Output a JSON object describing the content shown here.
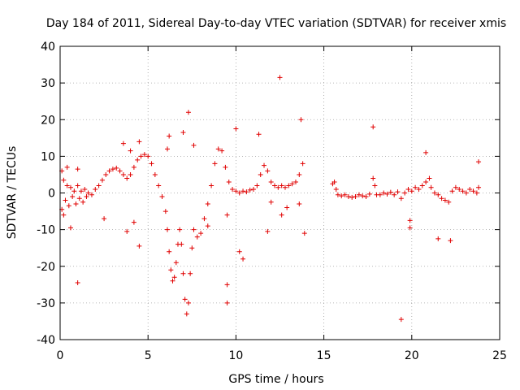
{
  "chart_data": {
    "type": "scatter",
    "title": "Day 184 of 2011, Sidereal Day-to-day VTEC variation (SDTVAR) for receiver xmis",
    "xlabel": "GPS time / hours",
    "ylabel": "SDTVAR / TECUs",
    "xlim": [
      0,
      25
    ],
    "ylim": [
      -40,
      40
    ],
    "xticks": [
      0,
      5,
      10,
      15,
      20,
      25
    ],
    "yticks": [
      -40,
      -30,
      -20,
      -10,
      0,
      10,
      20,
      30,
      40
    ],
    "xtick_labels": [
      "0",
      "5",
      "10",
      "15",
      "20",
      "25"
    ],
    "ytick_labels": [
      "-40",
      "-30",
      "-20",
      "-10",
      "0",
      "10",
      "20",
      "30",
      "40"
    ],
    "grid": true,
    "marker": "+",
    "color": "#e00000",
    "series": [
      {
        "name": "SDTVAR",
        "points": [
          [
            0.1,
            -4.5
          ],
          [
            0.1,
            6
          ],
          [
            0.2,
            3.5
          ],
          [
            0.2,
            -6
          ],
          [
            0.3,
            -2
          ],
          [
            0.4,
            2
          ],
          [
            0.5,
            -3.5
          ],
          [
            0.6,
            1.5
          ],
          [
            0.7,
            -1
          ],
          [
            0.8,
            0.5
          ],
          [
            0.9,
            -3
          ],
          [
            1.0,
            2
          ],
          [
            1.1,
            -1.5
          ],
          [
            1.2,
            0.5
          ],
          [
            1.3,
            -2.5
          ],
          [
            1.4,
            1
          ],
          [
            1.5,
            -1
          ],
          [
            1.6,
            0
          ],
          [
            1.8,
            -0.5
          ],
          [
            2.0,
            1
          ],
          [
            2.2,
            2
          ],
          [
            2.4,
            3.5
          ],
          [
            2.6,
            5
          ],
          [
            2.8,
            6
          ],
          [
            3.0,
            6.5
          ],
          [
            3.2,
            6.8
          ],
          [
            3.4,
            6
          ],
          [
            3.6,
            5
          ],
          [
            3.8,
            4
          ],
          [
            4.0,
            5
          ],
          [
            4.2,
            7
          ],
          [
            4.4,
            9
          ],
          [
            4.6,
            10
          ],
          [
            4.8,
            10.5
          ],
          [
            5.0,
            10
          ],
          [
            5.2,
            8
          ],
          [
            5.4,
            5
          ],
          [
            5.6,
            2
          ],
          [
            5.8,
            -1
          ],
          [
            6.0,
            -5
          ],
          [
            6.1,
            -10
          ],
          [
            6.2,
            -16
          ],
          [
            6.3,
            -21
          ],
          [
            6.4,
            -24
          ],
          [
            6.5,
            -23
          ],
          [
            6.6,
            -19
          ],
          [
            6.7,
            -14
          ],
          [
            6.8,
            -10
          ],
          [
            6.9,
            -14
          ],
          [
            7.0,
            -22
          ],
          [
            7.1,
            -29
          ],
          [
            7.2,
            -33
          ],
          [
            7.3,
            -30
          ],
          [
            7.4,
            -22
          ],
          [
            7.5,
            -15
          ],
          [
            7.6,
            -10
          ],
          [
            7.8,
            -12
          ],
          [
            8.0,
            -11
          ],
          [
            8.2,
            -7
          ],
          [
            8.4,
            -3
          ],
          [
            8.6,
            2
          ],
          [
            8.8,
            8
          ],
          [
            9.0,
            12
          ],
          [
            9.2,
            11.5
          ],
          [
            9.4,
            7
          ],
          [
            9.6,
            3
          ],
          [
            9.8,
            1
          ],
          [
            10.0,
            0.5
          ],
          [
            10.2,
            0
          ],
          [
            10.4,
            0.5
          ],
          [
            10.6,
            0.3
          ],
          [
            10.8,
            0.8
          ],
          [
            11.0,
            1
          ],
          [
            11.2,
            2
          ],
          [
            11.4,
            5
          ],
          [
            11.6,
            7.5
          ],
          [
            11.8,
            6
          ],
          [
            12.0,
            3
          ],
          [
            12.2,
            2
          ],
          [
            12.4,
            1.5
          ],
          [
            12.6,
            2
          ],
          [
            12.8,
            1.5
          ],
          [
            13.0,
            2
          ],
          [
            13.2,
            2.5
          ],
          [
            13.4,
            3
          ],
          [
            13.6,
            5
          ],
          [
            13.8,
            8
          ],
          [
            15.5,
            2.5
          ],
          [
            15.6,
            3
          ],
          [
            15.7,
            1
          ],
          [
            15.8,
            -0.5
          ],
          [
            16.0,
            -0.8
          ],
          [
            16.2,
            -0.5
          ],
          [
            16.4,
            -1
          ],
          [
            16.6,
            -1.2
          ],
          [
            16.8,
            -1
          ],
          [
            17.0,
            -0.5
          ],
          [
            17.2,
            -0.8
          ],
          [
            17.4,
            -1
          ],
          [
            17.6,
            -0.3
          ],
          [
            17.8,
            4
          ],
          [
            17.9,
            2
          ],
          [
            18.0,
            -0.5
          ],
          [
            18.2,
            -0.5
          ],
          [
            18.4,
            0
          ],
          [
            18.6,
            -0.3
          ],
          [
            18.8,
            0.2
          ],
          [
            19.0,
            -0.5
          ],
          [
            19.2,
            0.3
          ],
          [
            19.4,
            -1.5
          ],
          [
            19.6,
            0
          ],
          [
            19.8,
            1
          ],
          [
            20.0,
            0.5
          ],
          [
            20.2,
            1.5
          ],
          [
            20.4,
            1
          ],
          [
            20.6,
            2
          ],
          [
            20.8,
            3
          ],
          [
            21.0,
            4
          ],
          [
            21.1,
            1.5
          ],
          [
            21.3,
            0
          ],
          [
            21.5,
            -0.5
          ],
          [
            21.7,
            -1.5
          ],
          [
            21.9,
            -2
          ],
          [
            22.1,
            -2.5
          ],
          [
            22.3,
            0.5
          ],
          [
            22.5,
            1.5
          ],
          [
            22.7,
            1
          ],
          [
            22.9,
            0.5
          ],
          [
            23.1,
            0
          ],
          [
            23.3,
            1
          ],
          [
            23.5,
            0.5
          ],
          [
            23.7,
            0
          ],
          [
            23.8,
            1.5
          ],
          [
            1.0,
            -24.5
          ],
          [
            12.5,
            31.5
          ],
          [
            13.7,
            20
          ],
          [
            13.9,
            -11
          ],
          [
            9.5,
            -25
          ],
          [
            9.5,
            -30
          ],
          [
            19.4,
            -34.5
          ],
          [
            17.8,
            18
          ],
          [
            22.2,
            -13
          ],
          [
            23.8,
            8.5
          ],
          [
            20.8,
            11
          ],
          [
            10.0,
            17.5
          ],
          [
            11.3,
            16
          ],
          [
            7.3,
            22
          ],
          [
            7.0,
            16.5
          ],
          [
            6.2,
            15.5
          ],
          [
            4.5,
            14
          ],
          [
            4.0,
            11.5
          ],
          [
            3.6,
            13.5
          ],
          [
            3.8,
            -10.5
          ],
          [
            4.5,
            -14.5
          ],
          [
            4.2,
            -8
          ],
          [
            10.2,
            -16
          ],
          [
            10.4,
            -18
          ],
          [
            11.8,
            -10.5
          ],
          [
            12.6,
            -6
          ],
          [
            19.9,
            -9.5
          ],
          [
            19.9,
            -7.5
          ],
          [
            21.5,
            -12.5
          ],
          [
            0.6,
            -9.5
          ],
          [
            0.4,
            7
          ],
          [
            1.0,
            6.5
          ],
          [
            2.5,
            -7
          ],
          [
            8.4,
            -9
          ],
          [
            6.1,
            12
          ],
          [
            7.6,
            13
          ],
          [
            9.5,
            -6
          ],
          [
            12.0,
            -2.5
          ],
          [
            12.9,
            -4
          ],
          [
            13.6,
            -3
          ]
        ]
      }
    ]
  }
}
